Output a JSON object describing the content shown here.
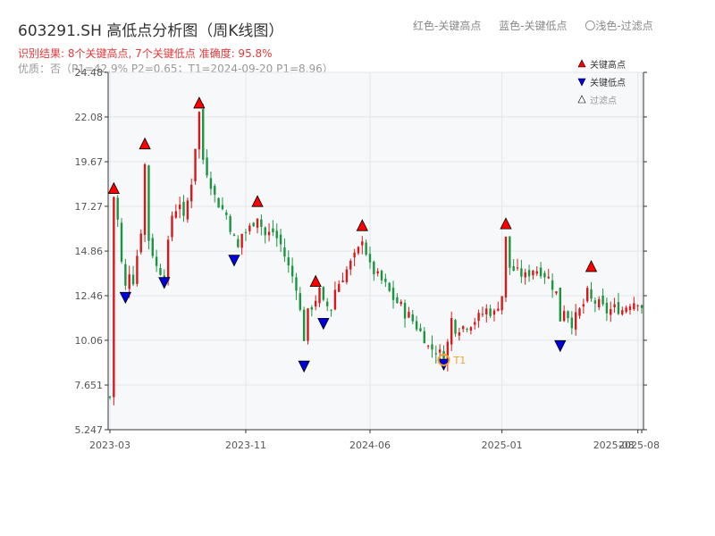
{
  "header": {
    "title": "603291.SH 高低点分析图（周K线图）",
    "subtitle": "识别结果: 8个关键高点, 7个关键低点  准确度: 95.8%",
    "quality": "优质：否（P1=42.9%  P2=0.65；T1=2024-09-20 P1=8.96）",
    "legend_top": [
      "红色-关键高点",
      "蓝色-关键低点",
      "〇浅色-过滤点"
    ]
  },
  "colors": {
    "up": "#d7191c",
    "down": "#1a9641",
    "high_marker": "#ff0000",
    "low_marker": "#0000dd",
    "t1": "#f0a030",
    "plot_bg": "#f7f8fa",
    "grid": "#e3e6ea"
  },
  "chart_data": {
    "type": "candlestick",
    "y_ticks": [
      "24.48",
      "22.08",
      "19.67",
      "17.27",
      "14.86",
      "12.46",
      "10.06",
      "7.651",
      "5.247"
    ],
    "ylim": [
      5.247,
      24.48
    ],
    "x_ticks": [
      {
        "label": "2023-03",
        "t": 0
      },
      {
        "label": "2023-11",
        "t": 35
      },
      {
        "label": "2024-06",
        "t": 67
      },
      {
        "label": "2025-01",
        "t": 101
      },
      {
        "label": "2025-08",
        "t": 136
      },
      {
        "label": "2025-08",
        "t": 137
      }
    ],
    "weeks": 138,
    "anchors": [
      [
        0,
        7.0
      ],
      [
        1,
        17.8
      ],
      [
        2,
        16.5
      ],
      [
        3,
        14.2
      ],
      [
        4,
        12.9
      ],
      [
        5,
        13.8
      ],
      [
        6,
        13.3
      ],
      [
        8,
        16.0
      ],
      [
        9,
        19.5
      ],
      [
        10,
        15.5
      ],
      [
        12,
        14.0
      ],
      [
        14,
        13.6
      ],
      [
        16,
        16.8
      ],
      [
        18,
        17.5
      ],
      [
        19,
        16.5
      ],
      [
        21,
        18.6
      ],
      [
        22,
        20.5
      ],
      [
        23,
        22.3
      ],
      [
        24,
        19.8
      ],
      [
        26,
        18.5
      ],
      [
        27,
        17.8
      ],
      [
        28,
        17.4
      ],
      [
        30,
        16.8
      ],
      [
        32,
        15.5
      ],
      [
        33,
        15.0
      ],
      [
        34,
        15.8
      ],
      [
        35,
        15.9
      ],
      [
        36,
        16.1
      ],
      [
        38,
        16.8
      ],
      [
        39,
        16.2
      ],
      [
        40,
        15.7
      ],
      [
        42,
        15.9
      ],
      [
        44,
        15.2
      ],
      [
        46,
        14.0
      ],
      [
        48,
        13.0
      ],
      [
        50,
        10.2
      ],
      [
        51,
        11.5
      ],
      [
        53,
        12.3
      ],
      [
        54,
        12.7
      ],
      [
        55,
        12.0
      ],
      [
        57,
        11.8
      ],
      [
        58,
        12.8
      ],
      [
        60,
        13.5
      ],
      [
        62,
        14.2
      ],
      [
        64,
        14.9
      ],
      [
        65,
        15.6
      ],
      [
        66,
        14.8
      ],
      [
        67,
        14.0
      ],
      [
        69,
        13.5
      ],
      [
        71,
        13.0
      ],
      [
        73,
        12.3
      ],
      [
        75,
        11.9
      ],
      [
        76,
        11.5
      ],
      [
        77,
        11.4
      ],
      [
        79,
        10.8
      ],
      [
        81,
        10.2
      ],
      [
        82,
        9.7
      ],
      [
        84,
        9.5
      ],
      [
        86,
        9.2
      ],
      [
        87,
        9.9
      ],
      [
        88,
        11.2
      ],
      [
        89,
        10.7
      ],
      [
        91,
        10.8
      ],
      [
        93,
        11.0
      ],
      [
        95,
        11.3
      ],
      [
        97,
        11.7
      ],
      [
        99,
        11.5
      ],
      [
        101,
        12.5
      ],
      [
        102,
        15.5
      ],
      [
        103,
        14.0
      ],
      [
        105,
        13.7
      ],
      [
        107,
        13.5
      ],
      [
        109,
        13.9
      ],
      [
        111,
        13.8
      ],
      [
        113,
        13.4
      ],
      [
        115,
        12.6
      ],
      [
        116,
        11.2
      ],
      [
        117,
        11.8
      ],
      [
        119,
        11.0
      ],
      [
        120,
        11.3
      ],
      [
        122,
        12.0
      ],
      [
        123,
        12.6
      ],
      [
        124,
        12.2
      ],
      [
        126,
        12.0
      ],
      [
        128,
        11.6
      ],
      [
        130,
        11.8
      ],
      [
        132,
        11.7
      ],
      [
        134,
        12.1
      ],
      [
        136,
        12.2
      ],
      [
        137,
        11.9
      ]
    ],
    "key_highs": [
      {
        "t": 1,
        "price": 18.2
      },
      {
        "t": 9,
        "price": 20.6
      },
      {
        "t": 23,
        "price": 22.8
      },
      {
        "t": 38,
        "price": 17.5
      },
      {
        "t": 53,
        "price": 13.2
      },
      {
        "t": 65,
        "price": 16.2
      },
      {
        "t": 102,
        "price": 16.3
      },
      {
        "t": 124,
        "price": 14.0
      }
    ],
    "key_lows": [
      {
        "t": 4,
        "price": 12.4
      },
      {
        "t": 14,
        "price": 13.2
      },
      {
        "t": 32,
        "price": 14.4
      },
      {
        "t": 50,
        "price": 8.7
      },
      {
        "t": 55,
        "price": 11.0
      },
      {
        "t": 86,
        "price": 8.8
      },
      {
        "t": 116,
        "price": 9.8
      }
    ],
    "t1_point": {
      "t": 86,
      "price": 9.0,
      "label": "T1"
    },
    "legend": [
      "关键高点",
      "关键低点",
      "过滤点"
    ]
  }
}
